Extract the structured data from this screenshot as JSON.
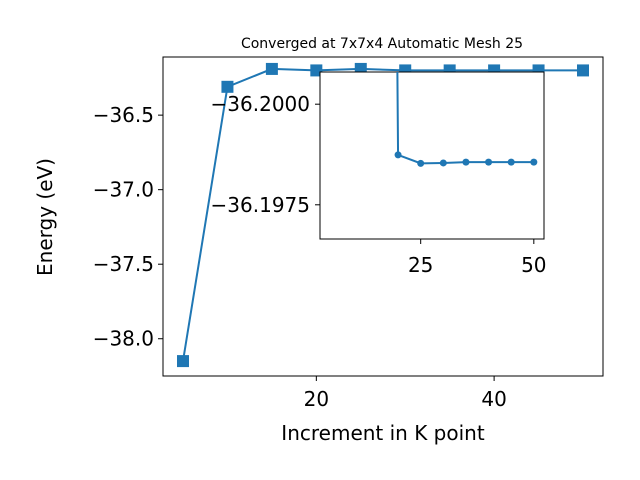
{
  "colors": {
    "series": "#1f77b4",
    "axes": "#000000",
    "background": "#ffffff"
  },
  "chart_data": [
    {
      "type": "line",
      "title": "Converged at 7x7x4 Automatic Mesh 25",
      "xlabel": "Increment in K point",
      "ylabel": "Energy (eV)",
      "xlim": [
        2.75,
        52.25
      ],
      "ylim": [
        -38.25,
        -36.11
      ],
      "xticks": [
        20,
        40
      ],
      "xtick_labels": [
        "20",
        "40"
      ],
      "yticks": [
        -38.0,
        -37.5,
        -37.0,
        -36.5
      ],
      "ytick_labels": [
        "−38.0",
        "−37.5",
        "−37.0",
        "−36.5"
      ],
      "marker": "square",
      "grid": false,
      "series": [
        {
          "x": [
            5,
            10,
            15,
            20,
            25,
            30,
            35,
            40,
            45,
            50
          ],
          "y": [
            -38.15,
            -36.31,
            -36.19,
            -36.2,
            -36.19,
            -36.2,
            -36.2,
            -36.2,
            -36.2,
            -36.2
          ]
        }
      ]
    },
    {
      "type": "line",
      "role": "inset",
      "xlim": [
        2.75,
        52.25
      ],
      "ylim": [
        -36.19665,
        -36.2008
      ],
      "xticks": [
        25,
        50
      ],
      "xtick_labels": [
        "25",
        "50"
      ],
      "yticks": [
        -36.2,
        -36.1975
      ],
      "ytick_labels": [
        "−36.2000",
        "−36.1975"
      ],
      "marker": "circle",
      "grid": false,
      "series": [
        {
          "x": [
            20,
            25,
            30,
            35,
            40,
            45,
            50
          ],
          "y": [
            -36.19874,
            -36.19853,
            -36.19854,
            -36.19856,
            -36.19856,
            -36.19856,
            -36.19856
          ],
          "from_above": {
            "x": 19.8,
            "y": -36.2015
          }
        }
      ]
    }
  ]
}
